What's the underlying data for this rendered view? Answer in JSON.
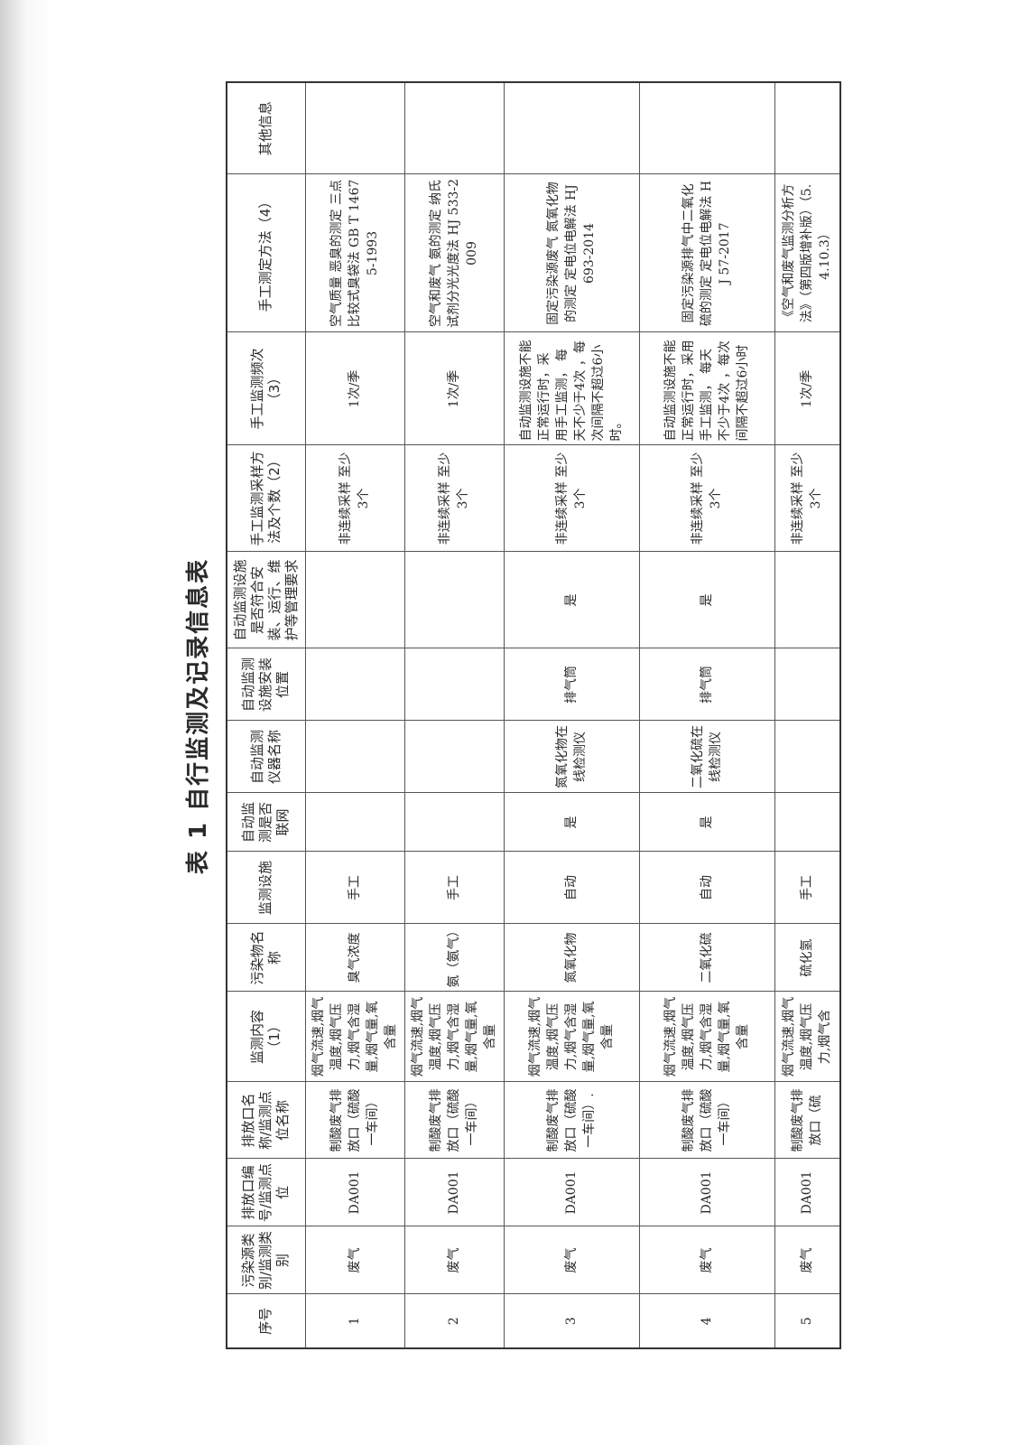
{
  "title": "表 1 自行监测及记录信息表",
  "headers": [
    "序号",
    "污染源类别/监测类别",
    "排放口编号/监测点位",
    "排放口名称/监测点位名称",
    "监测内容（1）",
    "污染物名称",
    "监测设施",
    "自动监测是否联网",
    "自动监测仪器名称",
    "自动监测设施安装位置",
    "自动监测设施是否符合安装、运行、维护等管理要求",
    "手工监测采样方法及个数（2）",
    "手工监测频次（3）",
    "手工测定方法（4）",
    "其他信息"
  ],
  "rows": [
    [
      "1",
      "废气",
      "DA001",
      "制酸废气排放口（硫酸一车间）",
      "烟气流速,烟气温度,烟气压力,烟气含湿量,烟气量,氧含量",
      "臭气浓度",
      "手工",
      "",
      "",
      "",
      "",
      "非连续采样 至少3个",
      "1次/季",
      "空气质量 恶臭的测定 三点比较式臭袋法 GB T 14675-1993",
      ""
    ],
    [
      "2",
      "废气",
      "DA001",
      "制酸废气排放口（硫酸一车间）",
      "烟气流速,烟气温度,烟气压力,烟气含湿量,烟气量,氧含量",
      "氨（氨气）",
      "手工",
      "",
      "",
      "",
      "",
      "非连续采样 至少3个",
      "1次/季",
      "空气和废气 氨的测定 纳氏试剂分光光度法 HJ 533-2009",
      ""
    ],
    [
      "3",
      "废气",
      "DA001",
      "制酸废气排放口（硫酸一车间）.",
      "烟气流速,烟气温度,烟气压力,烟气含湿量,烟气量,氧含量",
      "氮氧化物",
      "自动",
      "是",
      "氮氧化物在线检测仪",
      "排气筒",
      "是",
      "非连续采样 至少3个",
      "自动监测设施不能正常运行时，采 用手工监测， 每天不少于4次 ，每次间隔不超过6小时。",
      "固定污染源废气 氮氧化物的测定 定电位电解法 HJ 693-2014",
      ""
    ],
    [
      "4",
      "废气",
      "DA001",
      "制酸废气排放口（硫酸一车间）",
      "烟气流速,烟气温度,烟气压力,烟气含湿量,烟气量,氧含量",
      "二氧化硫",
      "自动",
      "是",
      "二氧化硫在线检测仪",
      "排气筒",
      "是",
      "非连续采样 至少3个",
      "自动监测设施不能正常运行时，采用手工监测， 每天不少于4次 ，每次间隔不超过6小时",
      "固定污染源排气中二氧化硫的测定 定电位电解法 HJ 57-2017",
      ""
    ],
    [
      "5",
      "废气",
      "DA001",
      "制酸废气排放口（硫",
      "烟气流速,烟气温度,烟气压力,烟气含",
      "硫化氢",
      "手工",
      "",
      "",
      "",
      "",
      "非连续采样 至少3个",
      "1次/季",
      "《空气和废气监测分析方法》（第四版增补版）（5.4.10.3）",
      ""
    ]
  ]
}
